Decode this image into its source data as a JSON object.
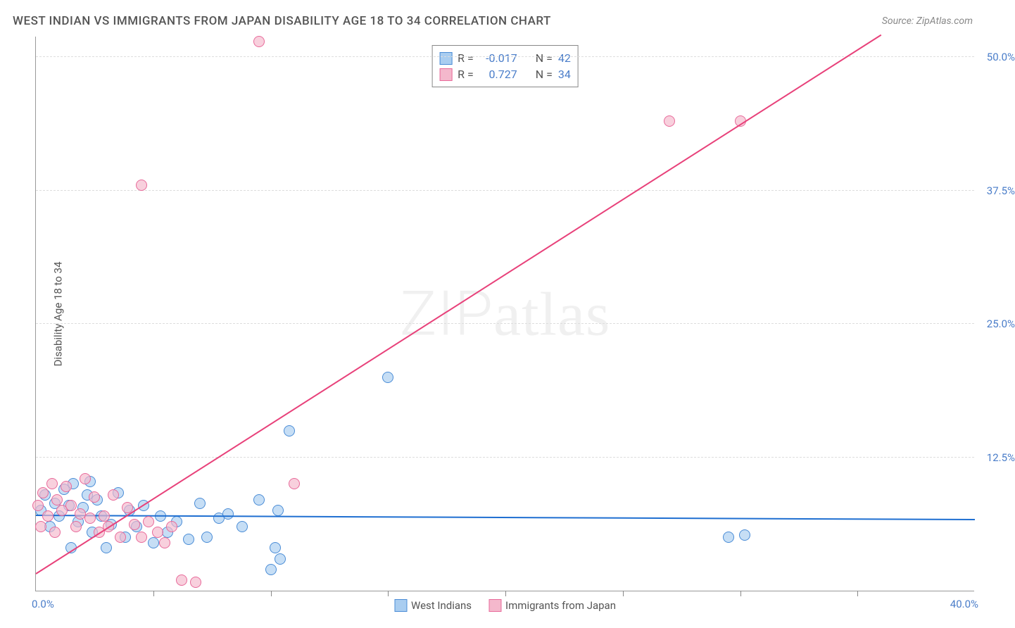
{
  "title": "WEST INDIAN VS IMMIGRANTS FROM JAPAN DISABILITY AGE 18 TO 34 CORRELATION CHART",
  "title_color": "#555555",
  "title_fontsize": 17,
  "source_label": "Source: ZipAtlas.com",
  "source_color": "#888888",
  "source_fontsize": 14,
  "ylabel": "Disability Age 18 to 34",
  "ylabel_color": "#555555",
  "ylabel_fontsize": 15,
  "watermark": {
    "zip": "ZIP",
    "atlas": "atlas",
    "color": "#d9d9d966"
  },
  "background_color": "#ffffff",
  "grid_color": "#dddddd",
  "axis_color": "#999999",
  "tick_label_color": "#4a7dc9",
  "tick_label_fontsize": 15,
  "xlim": [
    0,
    40
  ],
  "ylim": [
    0,
    52
  ],
  "yticks": [
    {
      "v": 12.5,
      "label": "12.5%"
    },
    {
      "v": 25.0,
      "label": "25.0%"
    },
    {
      "v": 37.5,
      "label": "37.5%"
    },
    {
      "v": 50.0,
      "label": "50.0%"
    }
  ],
  "xticks_minor": [
    5,
    10,
    15,
    20,
    25,
    30,
    35
  ],
  "xaxis_start_label": "0.0%",
  "xaxis_end_label": "40.0%",
  "series": [
    {
      "name": "West Indians",
      "legend_label": "West Indians",
      "color_fill": "#a9cdf0aa",
      "color_stroke": "#4a8cd6",
      "swatch_fill": "#a9cdf0",
      "swatch_border": "#4a8cd6",
      "r_label": "R =",
      "r_value": "-0.017",
      "n_label": "N =",
      "n_value": "42",
      "marker_radius": 8,
      "trend": {
        "x1": 0,
        "y1": 7.0,
        "x2": 40,
        "y2": 6.6,
        "color": "#1f6fd1",
        "width": 2
      },
      "points": [
        {
          "x": 0.2,
          "y": 7.5
        },
        {
          "x": 0.4,
          "y": 9.0
        },
        {
          "x": 0.6,
          "y": 6.0
        },
        {
          "x": 0.8,
          "y": 8.2
        },
        {
          "x": 1.0,
          "y": 7.0
        },
        {
          "x": 1.2,
          "y": 9.5
        },
        {
          "x": 1.4,
          "y": 8.0
        },
        {
          "x": 1.6,
          "y": 10.0
        },
        {
          "x": 1.8,
          "y": 6.5
        },
        {
          "x": 2.0,
          "y": 7.8
        },
        {
          "x": 2.2,
          "y": 9.0
        },
        {
          "x": 2.4,
          "y": 5.5
        },
        {
          "x": 2.6,
          "y": 8.5
        },
        {
          "x": 2.8,
          "y": 7.0
        },
        {
          "x": 3.0,
          "y": 4.0
        },
        {
          "x": 3.2,
          "y": 6.2
        },
        {
          "x": 3.5,
          "y": 9.2
        },
        {
          "x": 3.8,
          "y": 5.0
        },
        {
          "x": 4.0,
          "y": 7.5
        },
        {
          "x": 4.3,
          "y": 6.0
        },
        {
          "x": 4.6,
          "y": 8.0
        },
        {
          "x": 5.0,
          "y": 4.5
        },
        {
          "x": 5.3,
          "y": 7.0
        },
        {
          "x": 5.6,
          "y": 5.5
        },
        {
          "x": 6.0,
          "y": 6.5
        },
        {
          "x": 6.5,
          "y": 4.8
        },
        {
          "x": 7.0,
          "y": 8.2
        },
        {
          "x": 7.3,
          "y": 5.0
        },
        {
          "x": 7.8,
          "y": 6.8
        },
        {
          "x": 8.2,
          "y": 7.2
        },
        {
          "x": 8.8,
          "y": 6.0
        },
        {
          "x": 9.5,
          "y": 8.5
        },
        {
          "x": 10.0,
          "y": 2.0
        },
        {
          "x": 10.2,
          "y": 4.0
        },
        {
          "x": 10.4,
          "y": 3.0
        },
        {
          "x": 10.3,
          "y": 7.5
        },
        {
          "x": 10.8,
          "y": 15.0
        },
        {
          "x": 15.0,
          "y": 20.0
        },
        {
          "x": 29.5,
          "y": 5.0
        },
        {
          "x": 30.2,
          "y": 5.2
        },
        {
          "x": 1.5,
          "y": 4.0
        },
        {
          "x": 2.3,
          "y": 10.2
        }
      ]
    },
    {
      "name": "Immigrants from Japan",
      "legend_label": "Immigrants from Japan",
      "color_fill": "#f4b8ccaa",
      "color_stroke": "#e86a9a",
      "swatch_fill": "#f4b8cc",
      "swatch_border": "#e86a9a",
      "r_label": "R =",
      "r_value": "0.727",
      "n_label": "N =",
      "n_value": "34",
      "marker_radius": 8,
      "trend": {
        "x1": 0,
        "y1": 1.5,
        "x2": 36,
        "y2": 52,
        "color": "#e8417a",
        "width": 2
      },
      "points": [
        {
          "x": 0.1,
          "y": 8.0
        },
        {
          "x": 0.3,
          "y": 9.2
        },
        {
          "x": 0.5,
          "y": 7.0
        },
        {
          "x": 0.7,
          "y": 10.0
        },
        {
          "x": 0.9,
          "y": 8.5
        },
        {
          "x": 1.1,
          "y": 7.5
        },
        {
          "x": 1.3,
          "y": 9.8
        },
        {
          "x": 1.5,
          "y": 8.0
        },
        {
          "x": 1.7,
          "y": 6.0
        },
        {
          "x": 1.9,
          "y": 7.2
        },
        {
          "x": 2.1,
          "y": 10.5
        },
        {
          "x": 2.3,
          "y": 6.8
        },
        {
          "x": 2.5,
          "y": 8.8
        },
        {
          "x": 2.7,
          "y": 5.5
        },
        {
          "x": 2.9,
          "y": 7.0
        },
        {
          "x": 3.1,
          "y": 6.0
        },
        {
          "x": 3.3,
          "y": 9.0
        },
        {
          "x": 3.6,
          "y": 5.0
        },
        {
          "x": 3.9,
          "y": 7.8
        },
        {
          "x": 4.2,
          "y": 6.2
        },
        {
          "x": 4.5,
          "y": 5.0
        },
        {
          "x": 4.8,
          "y": 6.5
        },
        {
          "x": 5.2,
          "y": 5.5
        },
        {
          "x": 5.5,
          "y": 4.5
        },
        {
          "x": 5.8,
          "y": 6.0
        },
        {
          "x": 4.5,
          "y": 38.0
        },
        {
          "x": 6.2,
          "y": 1.0
        },
        {
          "x": 6.8,
          "y": 0.8
        },
        {
          "x": 9.5,
          "y": 51.5
        },
        {
          "x": 11.0,
          "y": 10.0
        },
        {
          "x": 27.0,
          "y": 44.0
        },
        {
          "x": 30.0,
          "y": 44.0
        },
        {
          "x": 0.2,
          "y": 6.0
        },
        {
          "x": 0.8,
          "y": 5.5
        }
      ]
    }
  ],
  "stats_text_color": "#555555",
  "stats_value_color": "#4a7dc9",
  "stats_fontsize": 16,
  "bottom_legend_color": "#555555",
  "bottom_legend_fontsize": 15
}
